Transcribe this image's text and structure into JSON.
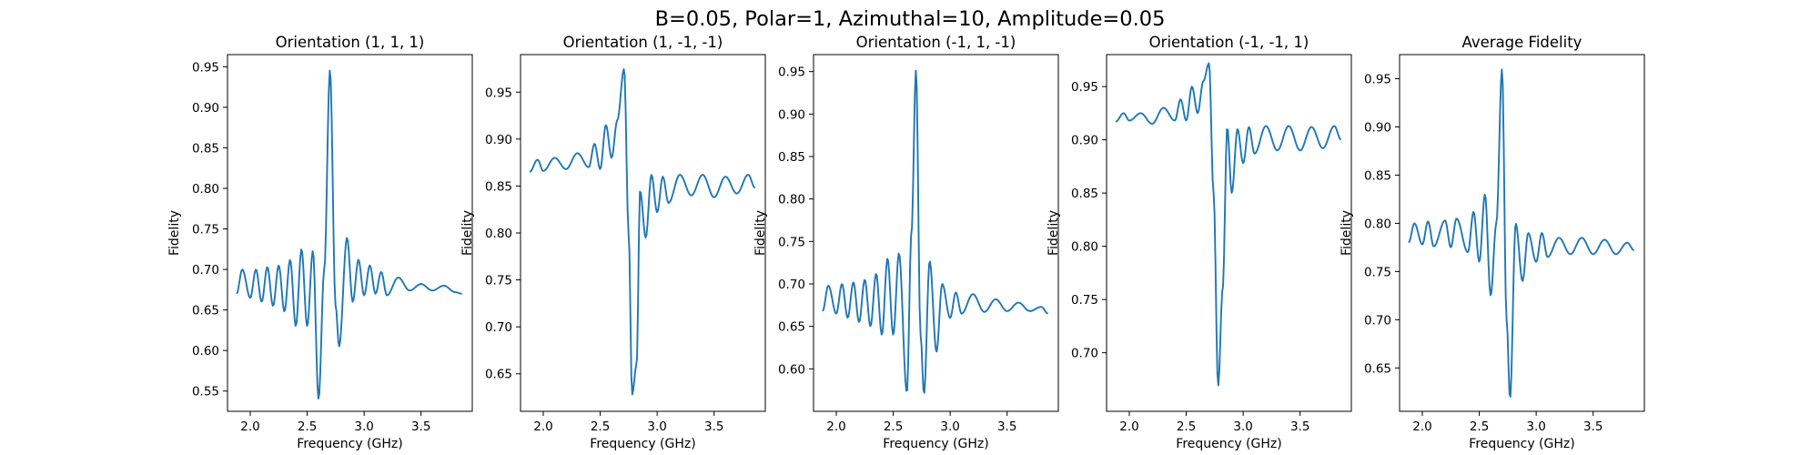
{
  "figure": {
    "suptitle": "B=0.05, Polar=1, Azimuthal=10, Amplitude=0.05"
  },
  "chart_data": [
    {
      "type": "line",
      "title": "Orientation (1, 1, 1)",
      "xlabel": "Frequency (GHz)",
      "ylabel": "Fidelity",
      "xlim": [
        1.8,
        3.95
      ],
      "ylim": [
        0.525,
        0.965
      ],
      "xticks": [
        2.0,
        2.5,
        3.0,
        3.5
      ],
      "yticks": [
        0.55,
        0.6,
        0.65,
        0.7,
        0.75,
        0.8,
        0.85,
        0.9,
        0.95
      ],
      "grid": false,
      "series": [
        {
          "color": "#1f77b4",
          "baseline": 0.682,
          "envelope": 0.02,
          "decay": 0.85,
          "spread": 0.9,
          "phase": 0.0,
          "x_step": 0.0167,
          "peak": {
            "x": 2.7,
            "y": 0.946,
            "width": 0.05
          },
          "dip": {
            "x": 2.76,
            "y": 0.605,
            "width": 0.055
          },
          "key_points": [
            [
              1.88,
              0.67
            ],
            [
              1.93,
              0.7
            ],
            [
              2.0,
              0.665
            ],
            [
              2.05,
              0.7
            ],
            [
              2.1,
              0.66
            ],
            [
              2.15,
              0.703
            ],
            [
              2.2,
              0.655
            ],
            [
              2.25,
              0.705
            ],
            [
              2.3,
              0.648
            ],
            [
              2.35,
              0.712
            ],
            [
              2.4,
              0.63
            ],
            [
              2.45,
              0.725
            ],
            [
              2.5,
              0.63
            ],
            [
              2.55,
              0.723
            ],
            [
              2.6,
              0.54
            ],
            [
              2.65,
              0.7
            ],
            [
              2.7,
              0.946
            ],
            [
              2.75,
              0.655
            ],
            [
              2.78,
              0.605
            ],
            [
              2.85,
              0.739
            ],
            [
              2.9,
              0.66
            ],
            [
              2.95,
              0.712
            ],
            [
              3.0,
              0.668
            ],
            [
              3.05,
              0.705
            ],
            [
              3.1,
              0.67
            ],
            [
              3.15,
              0.697
            ],
            [
              3.2,
              0.668
            ],
            [
              3.3,
              0.69
            ],
            [
              3.4,
              0.674
            ],
            [
              3.5,
              0.682
            ],
            [
              3.6,
              0.674
            ],
            [
              3.7,
              0.68
            ],
            [
              3.8,
              0.672
            ],
            [
              3.86,
              0.67
            ]
          ]
        }
      ]
    },
    {
      "type": "line",
      "title": "Orientation (1, -1, -1)",
      "xlabel": "Frequency (GHz)",
      "ylabel": "Fidelity",
      "xlim": [
        1.8,
        3.95
      ],
      "ylim": [
        0.61,
        0.99
      ],
      "xticks": [
        2.0,
        2.5,
        3.0,
        3.5
      ],
      "yticks": [
        0.65,
        0.7,
        0.75,
        0.8,
        0.85,
        0.9,
        0.95
      ],
      "grid": false,
      "series": [
        {
          "color": "#1f77b4",
          "baseline": 0.855,
          "envelope": 0.012,
          "decay": 1.0,
          "spread": 1.2,
          "phase": 0.4,
          "x_step": 0.0167,
          "peak": {
            "x": 2.71,
            "y": 0.975,
            "width": 0.05
          },
          "dip": {
            "x": 2.79,
            "y": 0.628,
            "width": 0.04
          },
          "key_points": [
            [
              1.88,
              0.865
            ],
            [
              1.95,
              0.878
            ],
            [
              2.0,
              0.866
            ],
            [
              2.1,
              0.88
            ],
            [
              2.2,
              0.868
            ],
            [
              2.3,
              0.885
            ],
            [
              2.4,
              0.87
            ],
            [
              2.45,
              0.895
            ],
            [
              2.5,
              0.868
            ],
            [
              2.55,
              0.915
            ],
            [
              2.6,
              0.88
            ],
            [
              2.65,
              0.92
            ],
            [
              2.71,
              0.975
            ],
            [
              2.75,
              0.8
            ],
            [
              2.78,
              0.628
            ],
            [
              2.82,
              0.66
            ],
            [
              2.85,
              0.845
            ],
            [
              2.9,
              0.795
            ],
            [
              2.95,
              0.862
            ],
            [
              3.0,
              0.822
            ],
            [
              3.05,
              0.86
            ],
            [
              3.1,
              0.832
            ],
            [
              3.2,
              0.862
            ],
            [
              3.3,
              0.84
            ],
            [
              3.4,
              0.862
            ],
            [
              3.5,
              0.838
            ],
            [
              3.6,
              0.86
            ],
            [
              3.7,
              0.842
            ],
            [
              3.8,
              0.862
            ],
            [
              3.86,
              0.848
            ]
          ]
        }
      ]
    },
    {
      "type": "line",
      "title": "Orientation (-1, 1, -1)",
      "xlabel": "Frequency (GHz)",
      "ylabel": "Fidelity",
      "xlim": [
        1.8,
        3.95
      ],
      "ylim": [
        0.55,
        0.97
      ],
      "xticks": [
        2.0,
        2.5,
        3.0,
        3.5
      ],
      "yticks": [
        0.6,
        0.65,
        0.7,
        0.75,
        0.8,
        0.85,
        0.9,
        0.95
      ],
      "grid": false,
      "series": [
        {
          "color": "#1f77b4",
          "baseline": 0.68,
          "envelope": 0.02,
          "decay": 0.85,
          "spread": 0.9,
          "phase": 1.1,
          "x_step": 0.0167,
          "peak": {
            "x": 2.7,
            "y": 0.952,
            "width": 0.05
          },
          "dip": {
            "x": 2.76,
            "y": 0.57,
            "width": 0.05
          },
          "key_points": [
            [
              1.88,
              0.668
            ],
            [
              1.93,
              0.698
            ],
            [
              2.0,
              0.665
            ],
            [
              2.05,
              0.7
            ],
            [
              2.1,
              0.66
            ],
            [
              2.15,
              0.702
            ],
            [
              2.2,
              0.655
            ],
            [
              2.25,
              0.705
            ],
            [
              2.3,
              0.65
            ],
            [
              2.35,
              0.712
            ],
            [
              2.4,
              0.64
            ],
            [
              2.45,
              0.73
            ],
            [
              2.5,
              0.64
            ],
            [
              2.55,
              0.736
            ],
            [
              2.62,
              0.572
            ],
            [
              2.66,
              0.76
            ],
            [
              2.7,
              0.952
            ],
            [
              2.74,
              0.64
            ],
            [
              2.77,
              0.57
            ],
            [
              2.82,
              0.727
            ],
            [
              2.88,
              0.62
            ],
            [
              2.93,
              0.7
            ],
            [
              3.0,
              0.66
            ],
            [
              3.05,
              0.69
            ],
            [
              3.1,
              0.665
            ],
            [
              3.2,
              0.688
            ],
            [
              3.3,
              0.667
            ],
            [
              3.4,
              0.682
            ],
            [
              3.5,
              0.668
            ],
            [
              3.6,
              0.678
            ],
            [
              3.7,
              0.668
            ],
            [
              3.8,
              0.673
            ],
            [
              3.86,
              0.665
            ]
          ]
        }
      ]
    },
    {
      "type": "line",
      "title": "Orientation (-1, -1, 1)",
      "xlabel": "Frequency (GHz)",
      "ylabel": "Fidelity",
      "xlim": [
        1.8,
        3.95
      ],
      "ylim": [
        0.645,
        0.98
      ],
      "xticks": [
        2.0,
        2.5,
        3.0,
        3.5
      ],
      "yticks": [
        0.7,
        0.75,
        0.8,
        0.85,
        0.9,
        0.95
      ],
      "grid": false,
      "series": [
        {
          "color": "#1f77b4",
          "baseline": 0.898,
          "envelope": 0.012,
          "decay": 1.0,
          "spread": 1.2,
          "phase": 1.7,
          "x_step": 0.0167,
          "peak": {
            "x": 2.7,
            "y": 0.972,
            "width": 0.05
          },
          "dip": {
            "x": 2.79,
            "y": 0.669,
            "width": 0.04
          },
          "key_points": [
            [
              1.88,
              0.917
            ],
            [
              1.95,
              0.925
            ],
            [
              2.0,
              0.918
            ],
            [
              2.1,
              0.925
            ],
            [
              2.2,
              0.915
            ],
            [
              2.3,
              0.93
            ],
            [
              2.4,
              0.918
            ],
            [
              2.45,
              0.938
            ],
            [
              2.5,
              0.918
            ],
            [
              2.55,
              0.95
            ],
            [
              2.6,
              0.925
            ],
            [
              2.65,
              0.955
            ],
            [
              2.7,
              0.972
            ],
            [
              2.74,
              0.85
            ],
            [
              2.78,
              0.669
            ],
            [
              2.82,
              0.76
            ],
            [
              2.86,
              0.912
            ],
            [
              2.9,
              0.85
            ],
            [
              2.95,
              0.91
            ],
            [
              3.0,
              0.878
            ],
            [
              3.05,
              0.912
            ],
            [
              3.1,
              0.887
            ],
            [
              3.2,
              0.913
            ],
            [
              3.3,
              0.89
            ],
            [
              3.4,
              0.913
            ],
            [
              3.5,
              0.89
            ],
            [
              3.6,
              0.912
            ],
            [
              3.7,
              0.892
            ],
            [
              3.8,
              0.913
            ],
            [
              3.86,
              0.9
            ]
          ]
        }
      ]
    },
    {
      "type": "line",
      "title": "Average Fidelity",
      "xlabel": "Frequency (GHz)",
      "ylabel": "Fidelity",
      "xlim": [
        1.8,
        3.95
      ],
      "ylim": [
        0.605,
        0.975
      ],
      "xticks": [
        2.0,
        2.5,
        3.0,
        3.5
      ],
      "yticks": [
        0.65,
        0.7,
        0.75,
        0.8,
        0.85,
        0.9,
        0.95
      ],
      "grid": false,
      "series": [
        {
          "color": "#1f77b4",
          "baseline": 0.778,
          "envelope": 0.014,
          "decay": 0.95,
          "spread": 1.0,
          "phase": 2.3,
          "x_step": 0.0167,
          "peak": {
            "x": 2.7,
            "y": 0.96,
            "width": 0.05
          },
          "dip": {
            "x": 2.77,
            "y": 0.618,
            "width": 0.045
          },
          "key_points": [
            [
              1.88,
              0.78
            ],
            [
              1.93,
              0.8
            ],
            [
              2.0,
              0.778
            ],
            [
              2.05,
              0.802
            ],
            [
              2.1,
              0.776
            ],
            [
              2.2,
              0.803
            ],
            [
              2.25,
              0.775
            ],
            [
              2.3,
              0.805
            ],
            [
              2.4,
              0.77
            ],
            [
              2.45,
              0.812
            ],
            [
              2.5,
              0.76
            ],
            [
              2.55,
              0.83
            ],
            [
              2.6,
              0.725
            ],
            [
              2.65,
              0.8
            ],
            [
              2.7,
              0.96
            ],
            [
              2.74,
              0.7
            ],
            [
              2.77,
              0.618
            ],
            [
              2.82,
              0.8
            ],
            [
              2.88,
              0.74
            ],
            [
              2.93,
              0.79
            ],
            [
              3.0,
              0.76
            ],
            [
              3.05,
              0.79
            ],
            [
              3.1,
              0.765
            ],
            [
              3.2,
              0.785
            ],
            [
              3.3,
              0.768
            ],
            [
              3.4,
              0.785
            ],
            [
              3.5,
              0.768
            ],
            [
              3.6,
              0.783
            ],
            [
              3.7,
              0.768
            ],
            [
              3.8,
              0.78
            ],
            [
              3.86,
              0.772
            ]
          ]
        }
      ]
    }
  ]
}
